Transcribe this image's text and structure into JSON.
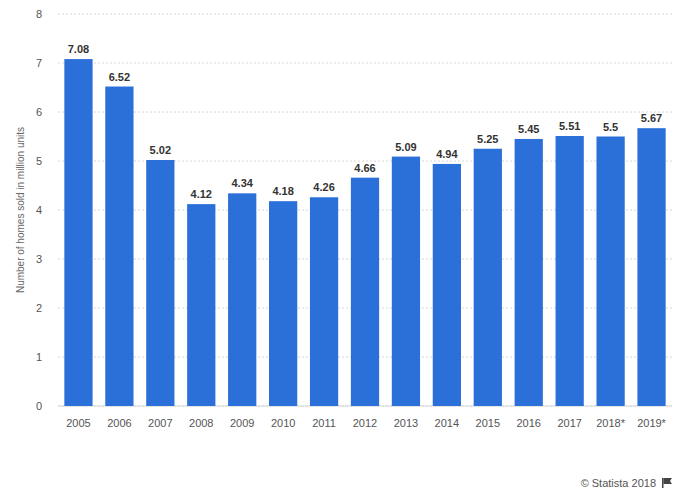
{
  "chart_data": {
    "type": "bar",
    "y_label": "Number of homes sold in million units",
    "categories": [
      "2005",
      "2006",
      "2007",
      "2008",
      "2009",
      "2010",
      "2011",
      "2012",
      "2013",
      "2014",
      "2015",
      "2016",
      "2017",
      "2018*",
      "2019*"
    ],
    "values": [
      7.08,
      6.52,
      5.02,
      4.12,
      4.34,
      4.18,
      4.26,
      4.66,
      5.09,
      4.94,
      5.25,
      5.45,
      5.51,
      5.5,
      5.67
    ],
    "color": "#2b6fd8",
    "ylim": [
      0,
      8
    ],
    "yticks": [
      0,
      1,
      2,
      3,
      4,
      5,
      6,
      7,
      8
    ],
    "grid": true,
    "data_labels": true,
    "annotation": "© Statista 2018"
  }
}
